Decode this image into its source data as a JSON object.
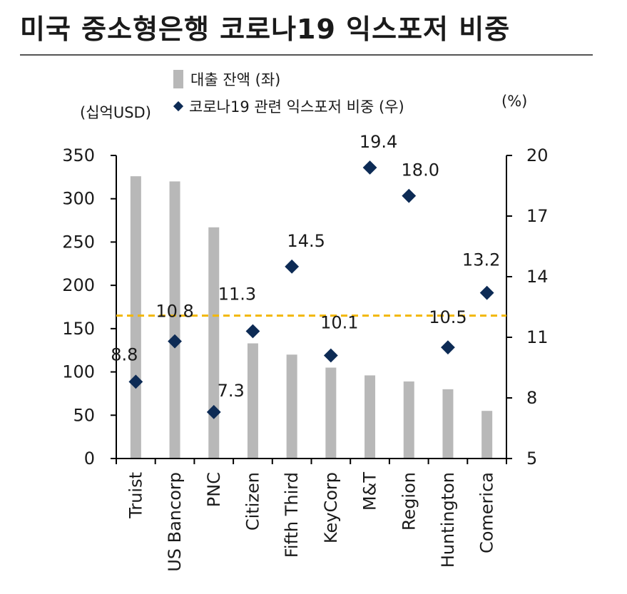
{
  "title": "미국 중소형은행 코로나19 익스포저 비중",
  "colors": {
    "bar": "#b8b8b8",
    "marker": "#0d2b55",
    "refline": "#f2b705",
    "axis": "#000000"
  },
  "chart_data": {
    "type": "bar",
    "categories": [
      "Truist",
      "US Bancorp",
      "PNC",
      "Citizen",
      "Fifth Third",
      "KeyCorp",
      "M&T",
      "Region",
      "Huntington",
      "Comerica"
    ],
    "series": [
      {
        "name": "대출 잔액 (좌)",
        "type": "bar",
        "axis": "left",
        "values": [
          326,
          320,
          267,
          133,
          120,
          105,
          96,
          89,
          80,
          55
        ]
      },
      {
        "name": "코로나19 관련 익스포저 비중 (우)",
        "type": "scatter",
        "axis": "right",
        "values": [
          8.8,
          10.8,
          7.3,
          11.3,
          14.5,
          10.1,
          19.4,
          18.0,
          10.5,
          13.2
        ],
        "labels": [
          "8.8",
          "10.8",
          "7.3",
          "11.3",
          "14.5",
          "10.1",
          "19.4",
          "18.0",
          "10.5",
          "13.2"
        ]
      }
    ],
    "reference_line": {
      "axis": "left",
      "value": 165
    },
    "left_axis": {
      "unit": "(십억USD)",
      "ylim": [
        0,
        350
      ],
      "ticks": [
        "0",
        "50",
        "100",
        "150",
        "200",
        "250",
        "300",
        "350"
      ]
    },
    "right_axis": {
      "unit": "(%)",
      "ylim": [
        5,
        20
      ],
      "ticks": [
        "5",
        "8",
        "11",
        "14",
        "17",
        "20"
      ]
    },
    "grid": false,
    "legend": {
      "position": "top"
    }
  }
}
